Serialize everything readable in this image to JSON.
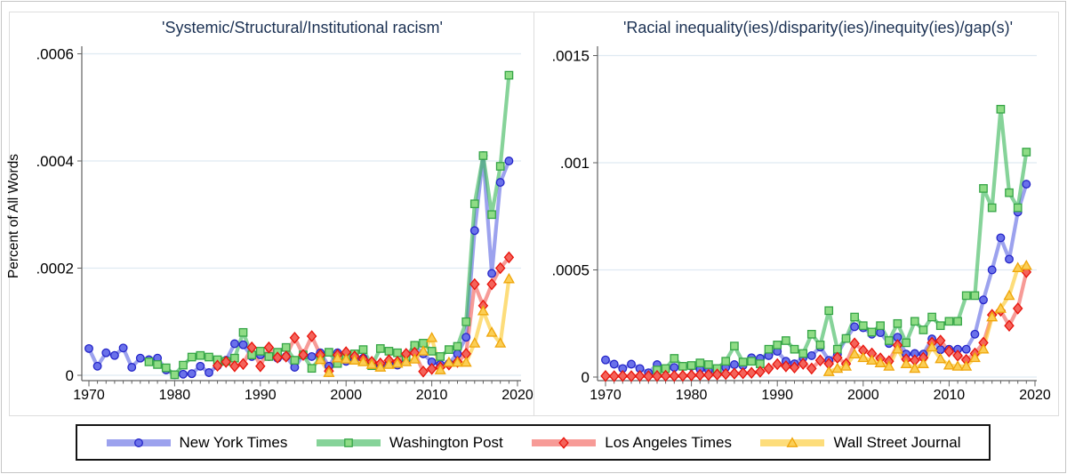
{
  "figure": {
    "ylabel": "Percent of All Words",
    "legend": {
      "position": "bottom",
      "items": [
        {
          "label": "New York Times"
        },
        {
          "label": "Washington Post"
        },
        {
          "label": "Los Angeles Times"
        },
        {
          "label": "Wall Street Journal"
        }
      ]
    }
  },
  "series_styles": [
    {
      "id": "nyt",
      "name": "New York Times",
      "marker": "circle",
      "line_color": "#4a55e0",
      "line_opacity": 0.55,
      "marker_fill": "#6a71ea",
      "marker_stroke": "#2526c9"
    },
    {
      "id": "wapo",
      "name": "Washington Post",
      "marker": "square",
      "line_color": "#36b655",
      "line_opacity": 0.6,
      "marker_fill": "#8fdc85",
      "marker_stroke": "#35a546"
    },
    {
      "id": "lat",
      "name": "Los Angeles Times",
      "marker": "diamond",
      "line_color": "#f03830",
      "line_opacity": 0.5,
      "marker_fill": "#f4635a",
      "marker_stroke": "#e8140c"
    },
    {
      "id": "wsj",
      "name": "Wall Street Journal",
      "marker": "triangle",
      "line_color": "#fcc623",
      "line_opacity": 0.6,
      "marker_fill": "#fbce54",
      "marker_stroke": "#efa50a"
    }
  ],
  "chart_data": [
    {
      "type": "line",
      "title": "'Systemic/Structural/Institutional racism'",
      "xlabel": "",
      "ylabel": "Percent of All Words",
      "x_start": 1970,
      "x_end": 2019,
      "xticks": [
        1970,
        1980,
        1990,
        2000,
        2010,
        2020
      ],
      "yticks": [
        {
          "value": 0,
          "label": "0"
        },
        {
          "value": 0.0002,
          "label": ".0002"
        },
        {
          "value": 0.0004,
          "label": ".0004"
        },
        {
          "value": 0.0006,
          "label": ".0006"
        }
      ],
      "ylim": [
        0,
        0.0006
      ],
      "grid": true,
      "series": [
        {
          "name": "New York Times",
          "values": [
            5e-05,
            1.7e-05,
            4.2e-05,
            3.7e-05,
            5.1e-05,
            1.5e-05,
            3.2e-05,
            2.9e-05,
            3.2e-05,
            1e-05,
            1e-06,
            2e-06,
            3e-06,
            1.7e-05,
            5e-06,
            1.8e-05,
            2.8e-05,
            5.9e-05,
            5.7e-05,
            3.5e-05,
            3.8e-05,
            3.5e-05,
            3.2e-05,
            3.5e-05,
            1.5e-05,
            3.8e-05,
            3.5e-05,
            4.2e-05,
            1.7e-05,
            4.2e-05,
            2.6e-05,
            2.9e-05,
            3.2e-05,
            2.2e-05,
            1.7e-05,
            2.2e-05,
            1.9e-05,
            2.9e-05,
            5.6e-05,
            4e-05,
            2.5e-05,
            2e-05,
            2.2e-05,
            4e-05,
            7.1e-05,
            0.00027,
            0.00041,
            0.00019,
            0.00036,
            0.0004
          ]
        },
        {
          "name": "Washington Post",
          "values": [
            null,
            null,
            null,
            null,
            null,
            null,
            null,
            2.5e-05,
            2e-05,
            1.4e-05,
            1e-06,
            1.9e-05,
            3.4e-05,
            3.7e-05,
            3.4e-05,
            2.9e-05,
            2.6e-05,
            3.2e-05,
            8e-05,
            3.8e-05,
            4.5e-05,
            3.5e-05,
            4.3e-05,
            5.2e-05,
            2.8e-05,
            3.8e-05,
            1.3e-05,
            3.2e-05,
            4.3e-05,
            2.2e-05,
            3.7e-05,
            4e-05,
            4.8e-05,
            1.8e-05,
            5e-05,
            4.5e-05,
            4.2e-05,
            3.5e-05,
            5.6e-05,
            6e-05,
            4.5e-05,
            3.5e-05,
            4.8e-05,
            5.4e-05,
            0.0001,
            0.00032,
            0.00041,
            0.0003,
            0.00039,
            0.00056
          ]
        },
        {
          "name": "Los Angeles Times",
          "values": [
            null,
            null,
            null,
            null,
            null,
            null,
            null,
            null,
            null,
            null,
            null,
            null,
            null,
            null,
            null,
            1.8e-05,
            2.5e-05,
            1.7e-05,
            2.1e-05,
            5.2e-05,
            1.7e-05,
            5.2e-05,
            3.3e-05,
            3.5e-05,
            7e-05,
            3.8e-05,
            7.3e-05,
            3.8e-05,
            8e-06,
            3.8e-05,
            4.3e-05,
            3.5e-05,
            3e-05,
            2.5e-05,
            2.2e-05,
            2.8e-05,
            2.5e-05,
            4e-05,
            4.2e-05,
            7e-06,
            1.2e-05,
            1.5e-05,
            2e-05,
            2.5e-05,
            4e-05,
            0.00017,
            0.00013,
            0.00017,
            0.0002,
            0.00022
          ]
        },
        {
          "name": "Wall Street Journal",
          "values": [
            null,
            null,
            null,
            null,
            null,
            null,
            null,
            null,
            null,
            null,
            null,
            null,
            null,
            null,
            null,
            null,
            null,
            null,
            null,
            null,
            null,
            null,
            null,
            null,
            null,
            null,
            null,
            2.9e-05,
            5e-06,
            3.2e-05,
            3e-05,
            2.8e-05,
            2.5e-05,
            2e-05,
            1.5e-05,
            2e-05,
            2.2e-05,
            2.5e-05,
            3e-05,
            4.5e-05,
            7e-05,
            1e-05,
            2.4e-05,
            2.4e-05,
            2.4e-05,
            6e-05,
            0.00012,
            8e-05,
            6e-05,
            0.00018
          ]
        }
      ]
    },
    {
      "type": "line",
      "title": "'Racial inequality(ies)/disparity(ies)/inequity(ies)/gap(s)'",
      "xlabel": "",
      "ylabel": "Percent of All Words",
      "x_start": 1970,
      "x_end": 2019,
      "xticks": [
        1970,
        1980,
        1990,
        2000,
        2010,
        2020
      ],
      "yticks": [
        {
          "value": 0,
          "label": "0"
        },
        {
          "value": 0.0005,
          "label": ".0005"
        },
        {
          "value": 0.001,
          "label": ".001"
        },
        {
          "value": 0.0015,
          "label": ".0015"
        }
      ],
      "ylim": [
        0,
        0.0015
      ],
      "grid": true,
      "series": [
        {
          "name": "New York Times",
          "values": [
            8e-05,
            6e-05,
            4e-05,
            6e-05,
            4e-05,
            2e-05,
            5.8e-05,
            3.7e-05,
            4.5e-05,
            5e-05,
            5e-05,
            3.7e-05,
            3.3e-05,
            2e-05,
            4.5e-05,
            5.8e-05,
            5.4e-05,
            9e-05,
            8.7e-05,
            0.0001,
            0.00012,
            7.4e-05,
            6.2e-05,
            9e-05,
            0.0001,
            0.00014,
            7.8e-05,
            0.000107,
            0.00018,
            0.000235,
            0.00023,
            0.0002,
            0.000207,
            0.000157,
            0.000186,
            0.000107,
            0.00011,
            0.000107,
            0.000178,
            0.000128,
            0.00013,
            0.00013,
            0.00013,
            0.0002,
            0.00036,
            0.0005,
            0.00065,
            0.00055,
            0.00077,
            0.0009
          ]
        },
        {
          "name": "Washington Post",
          "values": [
            null,
            null,
            null,
            null,
            null,
            null,
            3.3e-05,
            4e-05,
            8.7e-05,
            5e-05,
            5.4e-05,
            6.6e-05,
            5.8e-05,
            4e-05,
            7.4e-05,
            0.000145,
            7e-05,
            7.4e-05,
            6.2e-05,
            0.00013,
            0.00015,
            0.00017,
            0.00013,
            0.00011,
            0.0002,
            0.00015,
            0.00031,
            0.00013,
            0.00018,
            0.00028,
            0.00024,
            0.00021,
            0.00024,
            0.00017,
            0.00025,
            0.00016,
            0.00026,
            0.00022,
            0.00028,
            0.00024,
            0.00026,
            0.00026,
            0.00038,
            0.00038,
            0.00088,
            0.00079,
            0.00125,
            0.00086,
            0.00079,
            0.00105
          ]
        },
        {
          "name": "Los Angeles Times",
          "values": [
            5e-06,
            4e-06,
            5e-06,
            4e-06,
            5e-06,
            4e-06,
            5e-06,
            6e-06,
            5e-06,
            6e-06,
            8e-06,
            1e-05,
            1e-05,
            1.2e-05,
            1.4e-05,
            1.6e-05,
            1.8e-05,
            2e-05,
            2.5e-05,
            4e-05,
            6e-05,
            5e-05,
            4.5e-05,
            6.2e-05,
            4e-05,
            7.8e-05,
            6.2e-05,
            9e-05,
            6.2e-05,
            0.000157,
            0.000124,
            0.00011,
            8.7e-05,
            7.4e-05,
            0.000149,
            8.3e-05,
            7.8e-05,
            9e-05,
            0.00016,
            0.00017,
            0.00012,
            0.0001,
            8e-05,
            0.00011,
            0.00016,
            0.00029,
            0.00031,
            0.00024,
            0.00032,
            0.00049
          ]
        },
        {
          "name": "Wall Street Journal",
          "values": [
            null,
            null,
            null,
            null,
            null,
            null,
            null,
            null,
            null,
            null,
            null,
            null,
            null,
            null,
            null,
            null,
            null,
            null,
            null,
            null,
            null,
            null,
            null,
            null,
            null,
            null,
            2.5e-05,
            4e-05,
            5e-05,
            0.000107,
            9e-05,
            7.8e-05,
            6.6e-05,
            5e-05,
            0.00013,
            6.2e-05,
            4e-05,
            6.2e-05,
            0.00014,
            8.5e-05,
            5.5e-05,
            5e-05,
            5e-05,
            9e-05,
            0.00013,
            0.00028,
            0.00032,
            0.00038,
            0.00051,
            0.00052
          ]
        }
      ]
    }
  ]
}
